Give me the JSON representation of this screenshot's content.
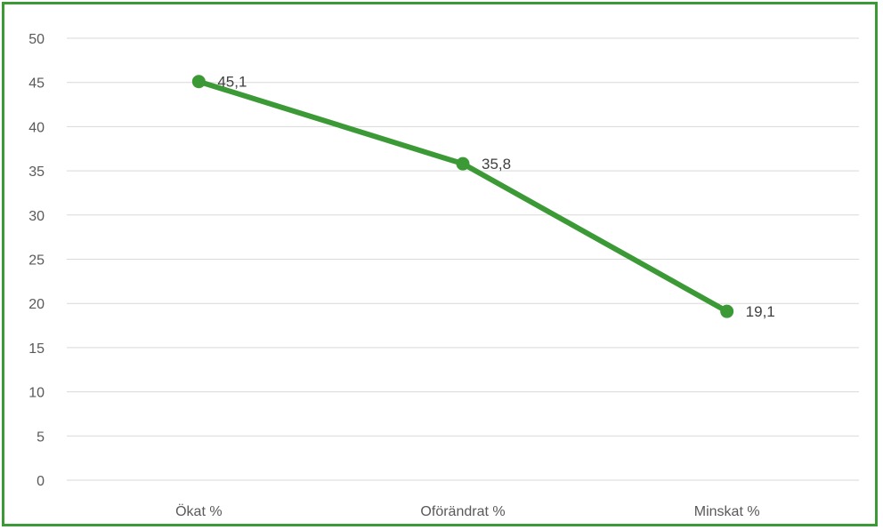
{
  "chart_data": {
    "type": "line",
    "title": "",
    "xlabel": "",
    "ylabel": "",
    "categories": [
      "Ökat %",
      "Oförändrat %",
      "Minskat %"
    ],
    "series": [
      {
        "values": [
          45.1,
          35.8,
          19.1
        ],
        "data_labels": [
          "45,1",
          "35,8",
          "19,1"
        ],
        "color": "#3c9a36"
      }
    ],
    "ylim": [
      0,
      50
    ],
    "ytick_step": 5,
    "yticks": [
      "0",
      "5",
      "10",
      "15",
      "20",
      "25",
      "30",
      "35",
      "40",
      "45",
      "50"
    ],
    "grid": true,
    "legend": "none",
    "colors": {
      "frame": "#3c9a36",
      "grid": "#d9d9d9",
      "line": "#3c9a36",
      "tick_text": "#595959",
      "label_text": "#404040"
    }
  }
}
